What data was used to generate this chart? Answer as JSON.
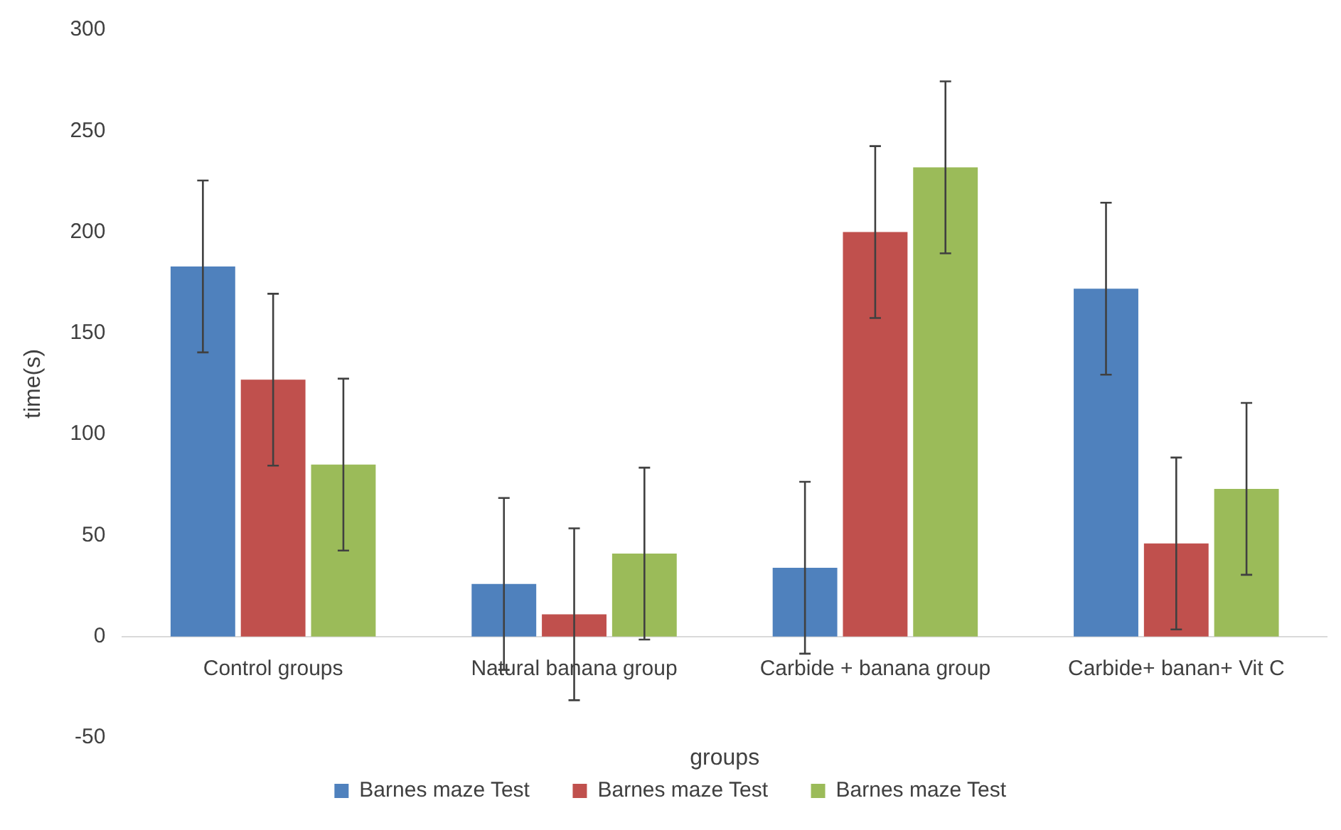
{
  "chart_data": {
    "type": "bar",
    "xlabel": "groups",
    "ylabel": "time(s)",
    "categories": [
      "Control groups",
      "Natural banana group",
      "Carbide + banana group",
      "Carbide+ banan+ Vit C"
    ],
    "series": [
      {
        "name": "Barnes maze Test",
        "color": "#4f81bd",
        "values": [
          183,
          26,
          34,
          172
        ],
        "errors": [
          42.5,
          42.5,
          42.5,
          42.5
        ]
      },
      {
        "name": "Barnes maze Test",
        "color": "#c0504d",
        "values": [
          127,
          11,
          200,
          46
        ],
        "errors": [
          42.5,
          42.5,
          42.5,
          42.5
        ]
      },
      {
        "name": "Barnes maze Test",
        "color": "#9bbb59",
        "values": [
          85,
          41,
          232,
          73
        ],
        "errors": [
          42.5,
          42.5,
          42.5,
          42.5
        ]
      }
    ],
    "ylim": [
      -50,
      300
    ],
    "yticks": [
      -50,
      0,
      50,
      100,
      150,
      200,
      250,
      300
    ],
    "grid": false,
    "legend": "bottom"
  }
}
